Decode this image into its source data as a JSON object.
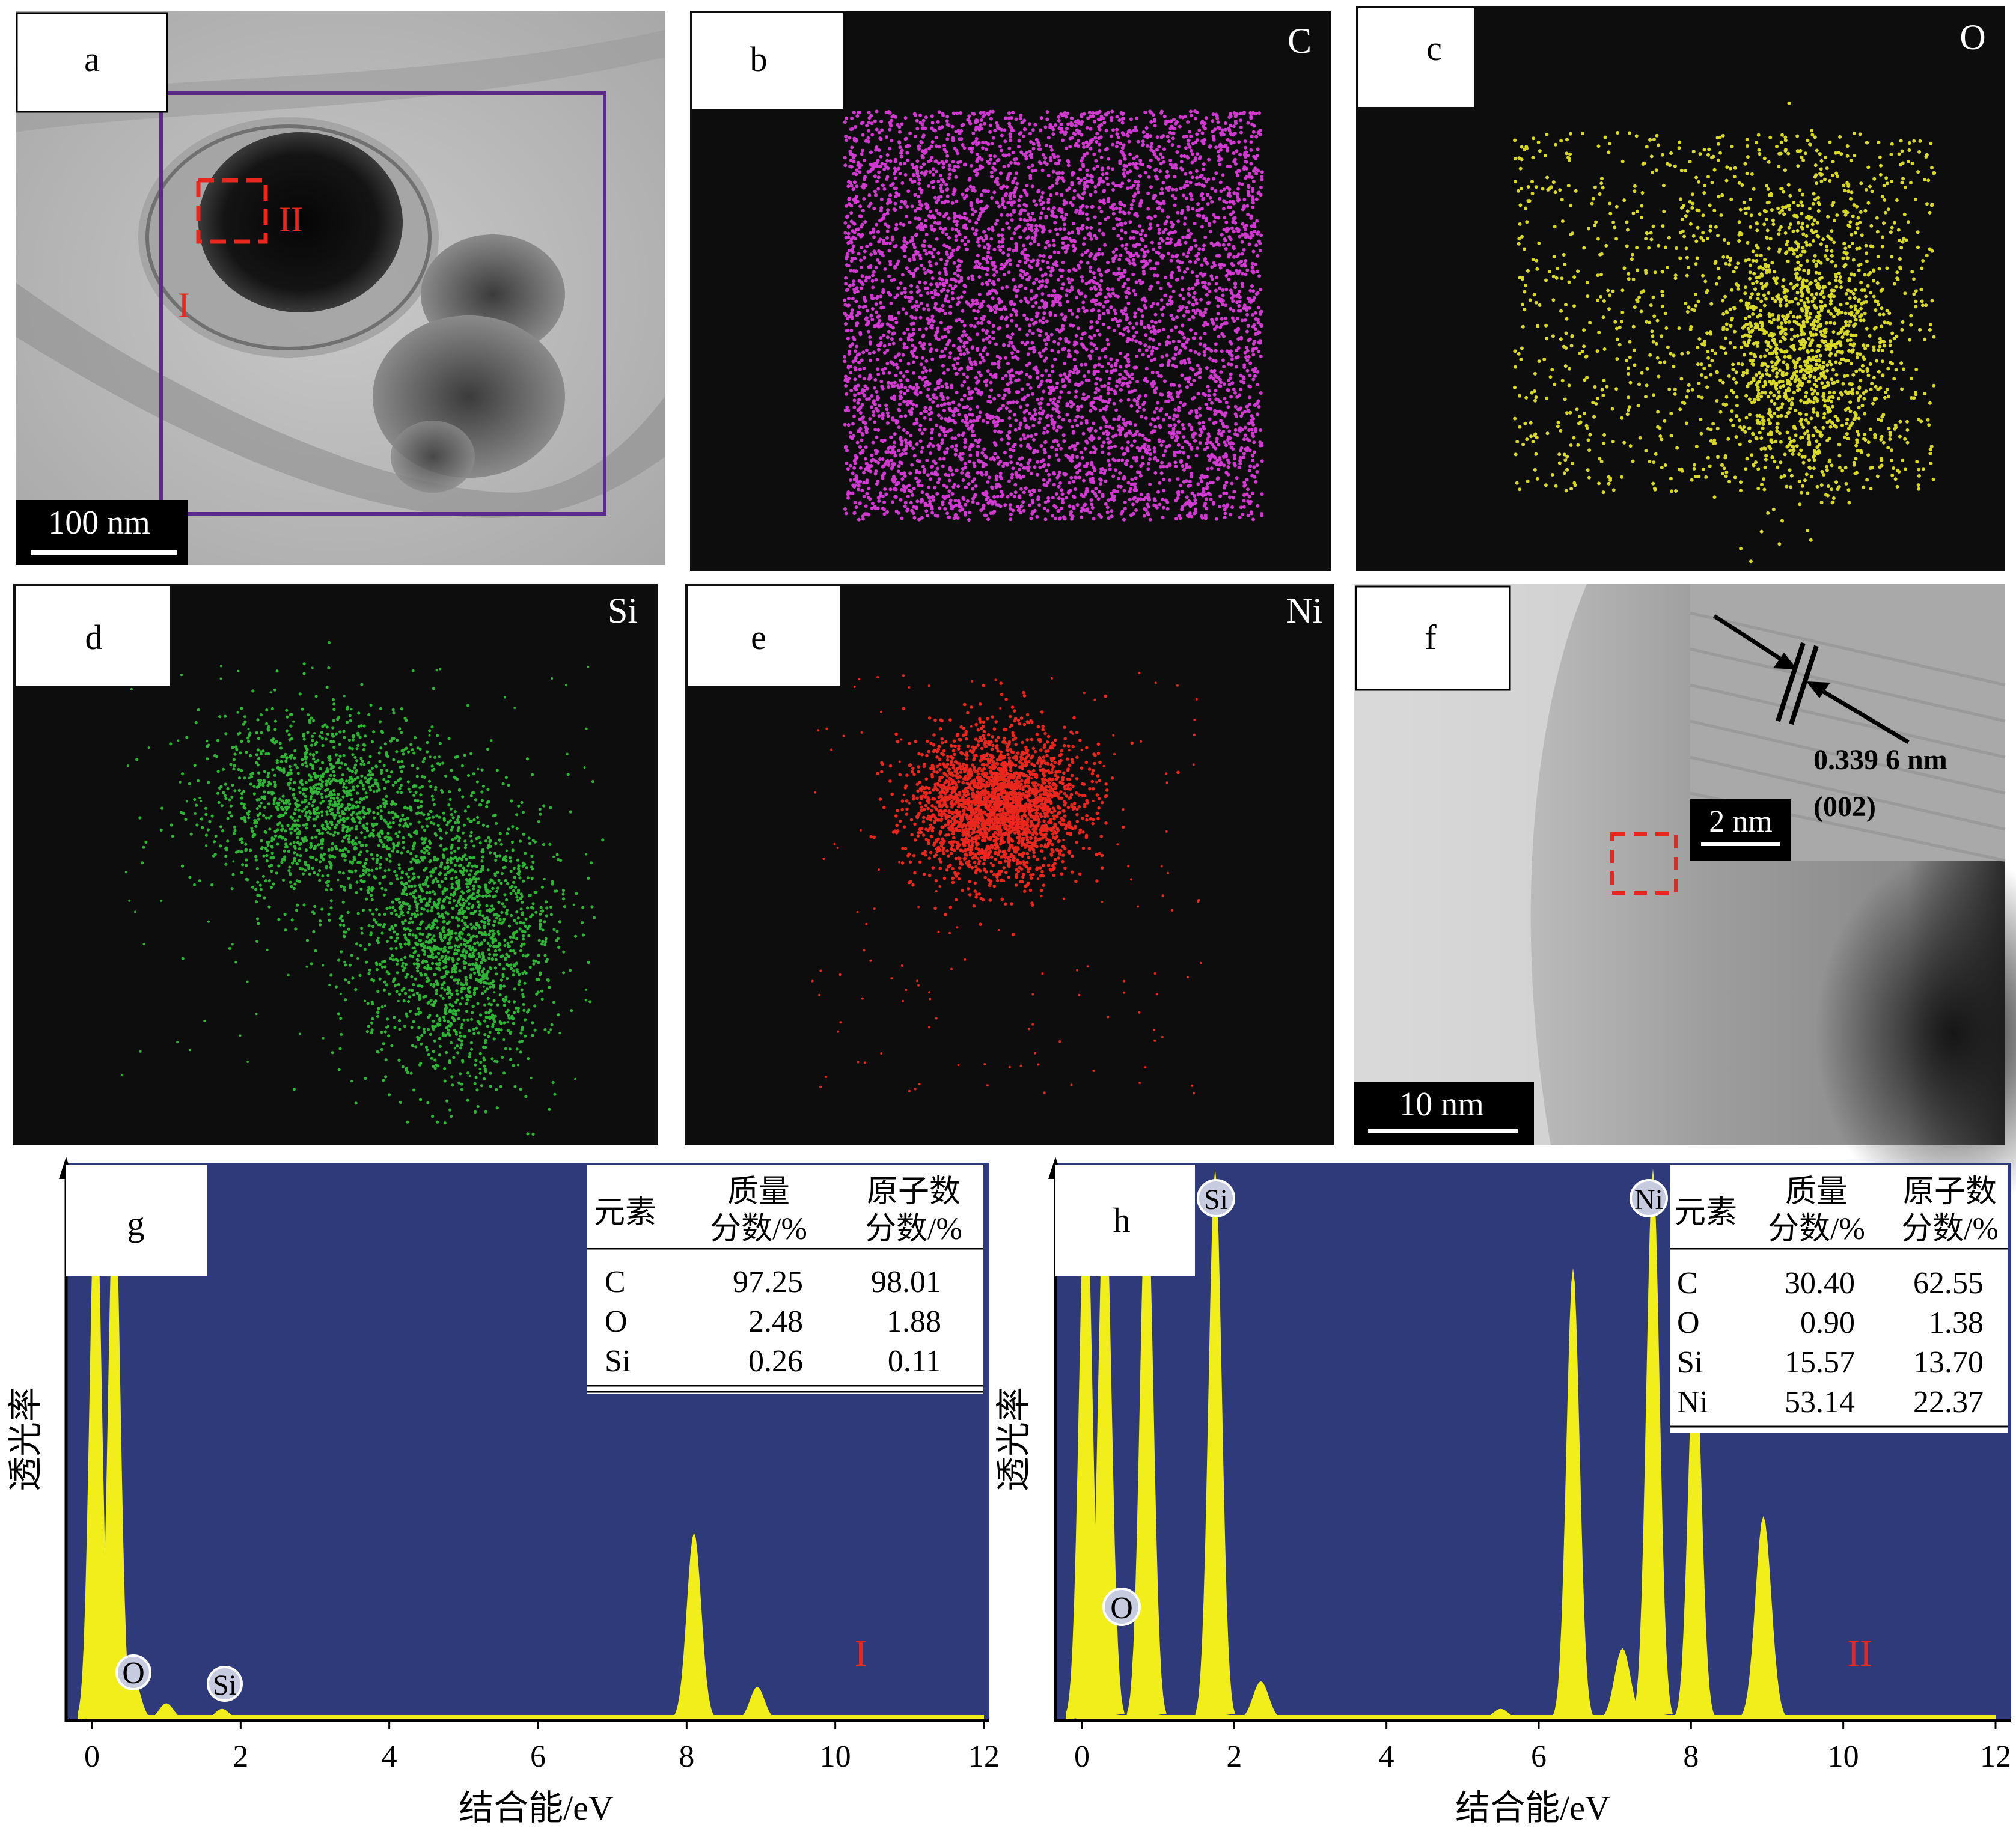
{
  "panels": {
    "a": {
      "label": "a",
      "scale_bar": "100 nm",
      "region_1": "I",
      "region_2": "II"
    },
    "b": {
      "label": "b",
      "element": "C",
      "color": "#d13ad0"
    },
    "c": {
      "label": "c",
      "element": "O",
      "color": "#d8d82a"
    },
    "d": {
      "label": "d",
      "element": "Si",
      "color": "#2fb436"
    },
    "e": {
      "label": "e",
      "element": "Ni",
      "color": "#e8271e"
    },
    "f": {
      "label": "f",
      "scale_bar": "10 nm",
      "inset_scale_bar": "2 nm",
      "d_spacing": "0.339 6 nm",
      "plane": "(002)"
    }
  },
  "spectra": {
    "g": {
      "label": "g",
      "region": "I",
      "ylabel": "透光率",
      "xlabel": "结合能/eV",
      "table": {
        "headers": [
          "元素",
          "质量\n分数/%",
          "原子数\n分数/%"
        ],
        "h1": "元素",
        "h2a": "质量",
        "h2b": "分数/%",
        "h3a": "原子数",
        "h3b": "分数/%",
        "rows": [
          [
            "C",
            "97.25",
            "98.01"
          ],
          [
            "O",
            "2.48",
            "1.88"
          ],
          [
            "Si",
            "0.26",
            "0.11"
          ]
        ]
      },
      "peak_labels": [
        "O",
        "Si"
      ]
    },
    "h": {
      "label": "h",
      "region": "II",
      "ylabel": "透光率",
      "xlabel": "结合能/eV",
      "table": {
        "h1": "元素",
        "h2a": "质量",
        "h2b": "分数/%",
        "h3a": "原子数",
        "h3b": "分数/%",
        "rows": [
          [
            "C",
            "30.40",
            "62.55"
          ],
          [
            "O",
            "0.90",
            "1.38"
          ],
          [
            "Si",
            "15.57",
            "13.70"
          ],
          [
            "Ni",
            "53.14",
            "22.37"
          ]
        ]
      },
      "peak_labels": [
        "O",
        "Si",
        "Ni"
      ]
    }
  },
  "colors": {
    "spectrum_bg": "#2e3a7a",
    "peak_fill": "#f2ee1c",
    "region_box": "#5b2a8a",
    "dash_box": "#e8271e"
  },
  "chart_data": [
    {
      "type": "area",
      "title": "",
      "xlabel": "结合能/eV",
      "ylabel": "透光率",
      "xlim": [
        0,
        12
      ],
      "xticks": [
        0,
        2,
        4,
        6,
        8,
        10,
        12
      ],
      "series": [
        {
          "name": "",
          "peaks": [
            {
              "x": 0.05,
              "y": 1.0
            },
            {
              "x": 0.3,
              "y": 1.0
            },
            {
              "x": 0.55,
              "y": 0.08
            },
            {
              "x": 1.0,
              "y": 0.03
            },
            {
              "x": 1.75,
              "y": 0.02
            },
            {
              "x": 8.1,
              "y": 0.34
            },
            {
              "x": 8.95,
              "y": 0.06
            }
          ]
        }
      ]
    },
    {
      "type": "area",
      "title": "",
      "xlabel": "结合能/eV",
      "ylabel": "透光率",
      "xlim": [
        0,
        12
      ],
      "xticks": [
        0,
        2,
        4,
        6,
        8,
        10,
        12
      ],
      "series": [
        {
          "name": "",
          "peaks": [
            {
              "x": 0.05,
              "y": 1.0
            },
            {
              "x": 0.3,
              "y": 1.0
            },
            {
              "x": 0.85,
              "y": 1.0
            },
            {
              "x": 1.75,
              "y": 1.0
            },
            {
              "x": 2.35,
              "y": 0.07
            },
            {
              "x": 5.5,
              "y": 0.02
            },
            {
              "x": 6.45,
              "y": 0.82
            },
            {
              "x": 7.1,
              "y": 0.13
            },
            {
              "x": 7.5,
              "y": 1.0
            },
            {
              "x": 8.05,
              "y": 0.7
            },
            {
              "x": 8.95,
              "y": 0.37
            }
          ]
        }
      ]
    }
  ]
}
